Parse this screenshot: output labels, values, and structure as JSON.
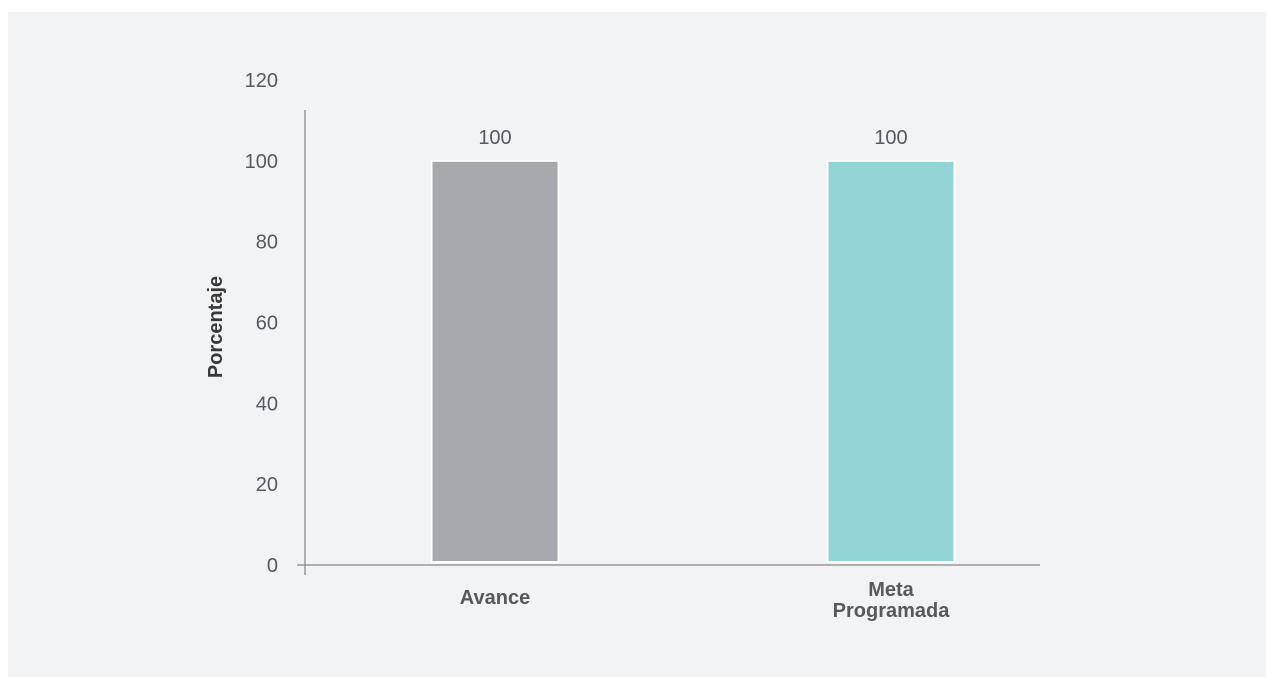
{
  "chart_data": {
    "type": "bar",
    "categories": [
      "Avance",
      "Meta Programada"
    ],
    "category_lines": [
      [
        "Avance"
      ],
      [
        "Meta",
        "Programada"
      ]
    ],
    "values": [
      100,
      100
    ],
    "data_labels": [
      "100",
      "100"
    ],
    "bar_colors": [
      "#a7a9ac",
      "#93d5d6"
    ],
    "title": "",
    "xlabel": "",
    "ylabel": "Porcentaje",
    "ylim": [
      0,
      120
    ],
    "yticks": [
      "0",
      "20",
      "40",
      "60",
      "80",
      "100",
      "120"
    ],
    "grid": false,
    "legend": "none"
  },
  "colors": {
    "background": "#f2f3f5",
    "axis": "#6d6e71",
    "text": "#555a60"
  }
}
